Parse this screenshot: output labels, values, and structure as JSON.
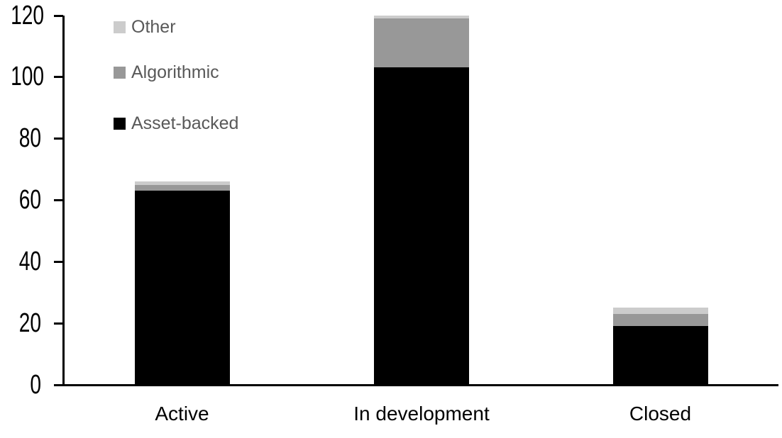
{
  "chart_data": {
    "type": "bar",
    "stacked": true,
    "orientation": "vertical",
    "categories": [
      "Active",
      "In development",
      "Closed"
    ],
    "series": [
      {
        "name": "Asset-backed",
        "color": "#000000",
        "values": [
          63,
          103,
          19
        ]
      },
      {
        "name": "Algorithmic",
        "color": "#989898",
        "values": [
          2,
          16,
          4
        ]
      },
      {
        "name": "Other",
        "color": "#cccccc",
        "values": [
          1,
          1,
          2
        ]
      }
    ],
    "stack_totals": [
      66,
      120,
      25
    ],
    "title": "",
    "xlabel": "",
    "ylabel": "",
    "ylim": [
      0,
      120
    ],
    "yticks": [
      0,
      20,
      40,
      60,
      80,
      100,
      120
    ],
    "grid": false,
    "legend": {
      "position": "top-left",
      "order": [
        "Other",
        "Algorithmic",
        "Asset-backed"
      ],
      "text_color": "#595959"
    },
    "colors": {
      "axis": "#000000",
      "tick_label": "#000000",
      "category_label": "#000000",
      "background": "#ffffff"
    }
  }
}
